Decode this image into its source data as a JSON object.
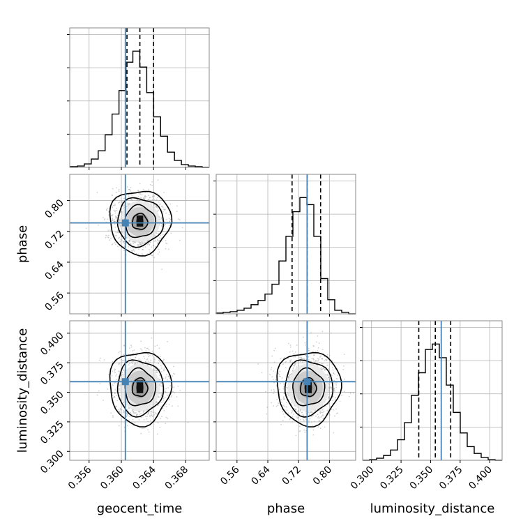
{
  "chart_data": {
    "type": "corner",
    "parameters": [
      "geocent_time",
      "phase",
      "luminosity_distance"
    ],
    "axis_labels": {
      "x": [
        "geocent_time",
        "phase",
        "luminosity_distance"
      ],
      "y": [
        "",
        "phase",
        "luminosity_distance"
      ]
    },
    "ranges": {
      "geocent_time": [
        0.3536,
        0.3709
      ],
      "phase": [
        0.506,
        0.868
      ],
      "luminosity_distance": [
        0.2925,
        0.4105
      ]
    },
    "ticks": {
      "geocent_time": [
        0.356,
        0.36,
        0.364,
        0.368
      ],
      "phase": [
        0.56,
        0.64,
        0.72,
        0.8
      ],
      "luminosity_distance": [
        0.3,
        0.325,
        0.35,
        0.375,
        0.4
      ]
    },
    "tick_labels": {
      "geocent_time": [
        "0.356",
        "0.360",
        "0.364",
        "0.368"
      ],
      "phase": [
        "0.56",
        "0.64",
        "0.72",
        "0.80"
      ],
      "luminosity_distance": [
        "0.300",
        "0.325",
        "0.350",
        "0.375",
        "0.400"
      ]
    },
    "truths": {
      "geocent_time": 0.3605,
      "phase": 0.742,
      "luminosity_distance": 0.359
    },
    "quantiles": {
      "geocent_time": [
        0.3607,
        0.3623,
        0.364
      ],
      "phase": [
        0.703,
        0.742,
        0.777
      ],
      "luminosity_distance": [
        0.34,
        0.354,
        0.367
      ]
    },
    "marginal_histograms": {
      "geocent_time": {
        "bins": [
          0.35369,
          0.35455,
          0.35541,
          0.35627,
          0.35713,
          0.35799,
          0.35885,
          0.35971,
          0.36057,
          0.36143,
          0.36229,
          0.36315,
          0.36401,
          0.36487,
          0.36573,
          0.36659,
          0.36745,
          0.36831,
          0.36917,
          0.37003,
          0.37089
        ],
        "counts": [
          1,
          2,
          5,
          12,
          24,
          47,
          77,
          111,
          152,
          168,
          145,
          108,
          73,
          45,
          22,
          10,
          4,
          2,
          1,
          0
        ]
      },
      "phase": {
        "bins": [
          0.506,
          0.5241,
          0.5422,
          0.5603,
          0.5784,
          0.5965,
          0.6146,
          0.6327,
          0.6508,
          0.6689,
          0.687,
          0.7051,
          0.7232,
          0.7413,
          0.7594,
          0.7775,
          0.7956,
          0.8137,
          0.8318,
          0.8499,
          0.868
        ],
        "counts": [
          1,
          2,
          3,
          5,
          8,
          13,
          19,
          28,
          42,
          75,
          110,
          145,
          165,
          155,
          110,
          50,
          20,
          5,
          2,
          0
        ]
      },
      "luminosity_distance": {
        "bins": [
          0.2925,
          0.2984,
          0.3043,
          0.3102,
          0.3161,
          0.322,
          0.3279,
          0.3338,
          0.3397,
          0.3456,
          0.3515,
          0.3574,
          0.3633,
          0.3692,
          0.3751,
          0.381,
          0.3869,
          0.3928,
          0.3987,
          0.4046,
          0.4105
        ],
        "counts": [
          0,
          1,
          3,
          7,
          15,
          30,
          55,
          95,
          128,
          162,
          170,
          150,
          110,
          70,
          40,
          20,
          10,
          4,
          1,
          0
        ]
      }
    },
    "joint_posteriors": [
      {
        "x": "geocent_time",
        "y": "phase",
        "x_center": 0.3623,
        "y_center": 0.745,
        "x_sd": 0.00165,
        "y_sd": 0.036
      },
      {
        "x": "geocent_time",
        "y": "luminosity_distance",
        "x_center": 0.3623,
        "y_center": 0.354,
        "x_sd": 0.00165,
        "y_sd": 0.0135
      },
      {
        "x": "phase",
        "y": "luminosity_distance",
        "x_center": 0.745,
        "y_center": 0.354,
        "x_sd": 0.036,
        "y_sd": 0.0135
      }
    ],
    "contour_levels_sigma": [
      0.5,
      1.0,
      1.5,
      2.0
    ],
    "grid": true,
    "colors": {
      "histogram": "#000000",
      "contour": "#000000",
      "truth": "#4682b4",
      "quantile": "#000000",
      "grid": "#b0b0b0",
      "scatter": "#999999"
    }
  }
}
